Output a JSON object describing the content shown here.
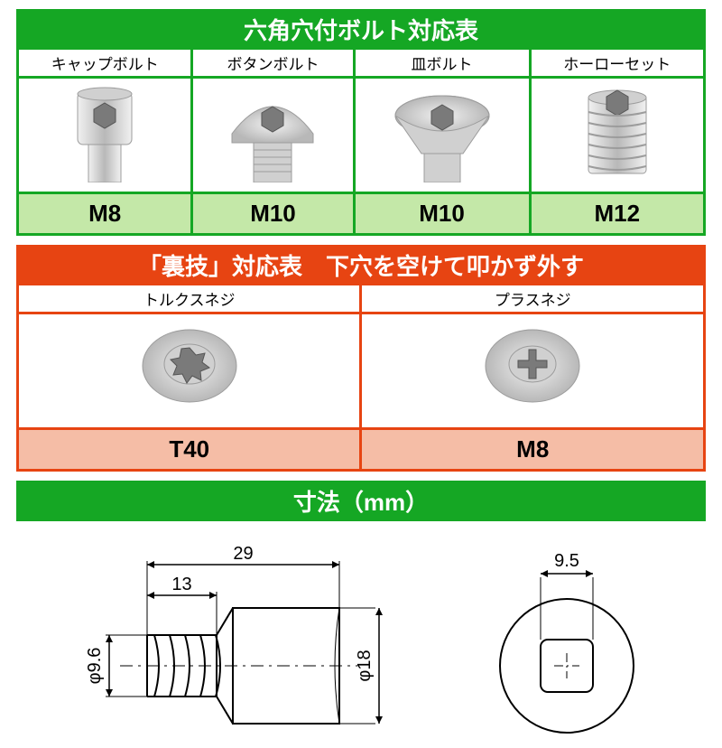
{
  "tableA": {
    "title": "六角穴付ボルト対応表",
    "border_color": "#15a724",
    "header_bg": "#15a724",
    "header_color": "#ffffff",
    "label_bg": "#ffffff",
    "value_bg": "#c4e8a8",
    "cols": [
      {
        "label": "キャップボルト",
        "value": "M8",
        "icon": "cap"
      },
      {
        "label": "ボタンボルト",
        "value": "M10",
        "icon": "button"
      },
      {
        "label": "皿ボルト",
        "value": "M10",
        "icon": "flat"
      },
      {
        "label": "ホーローセット",
        "value": "M12",
        "icon": "set"
      }
    ]
  },
  "tableB": {
    "title": "「裏技」対応表　下穴を空けて叩かず外す",
    "border_color": "#e74412",
    "header_bg": "#e74412",
    "header_color": "#ffffff",
    "label_bg": "#ffffff",
    "value_bg": "#f5bda6",
    "cols": [
      {
        "label": "トルクスネジ",
        "value": "T40",
        "icon": "torx"
      },
      {
        "label": "プラスネジ",
        "value": "M8",
        "icon": "phillips"
      }
    ]
  },
  "dimensions": {
    "title": "寸法（mm）",
    "border_color": "#15a724",
    "header_bg": "#15a724",
    "header_color": "#ffffff",
    "values": {
      "outer_dia": "9.5",
      "length_full": "29",
      "length_tip": "13",
      "tip_dia": "φ9.6",
      "body_dia": "φ18"
    },
    "stroke": "#000000",
    "stroke_width": 2,
    "fontsize": 20
  }
}
